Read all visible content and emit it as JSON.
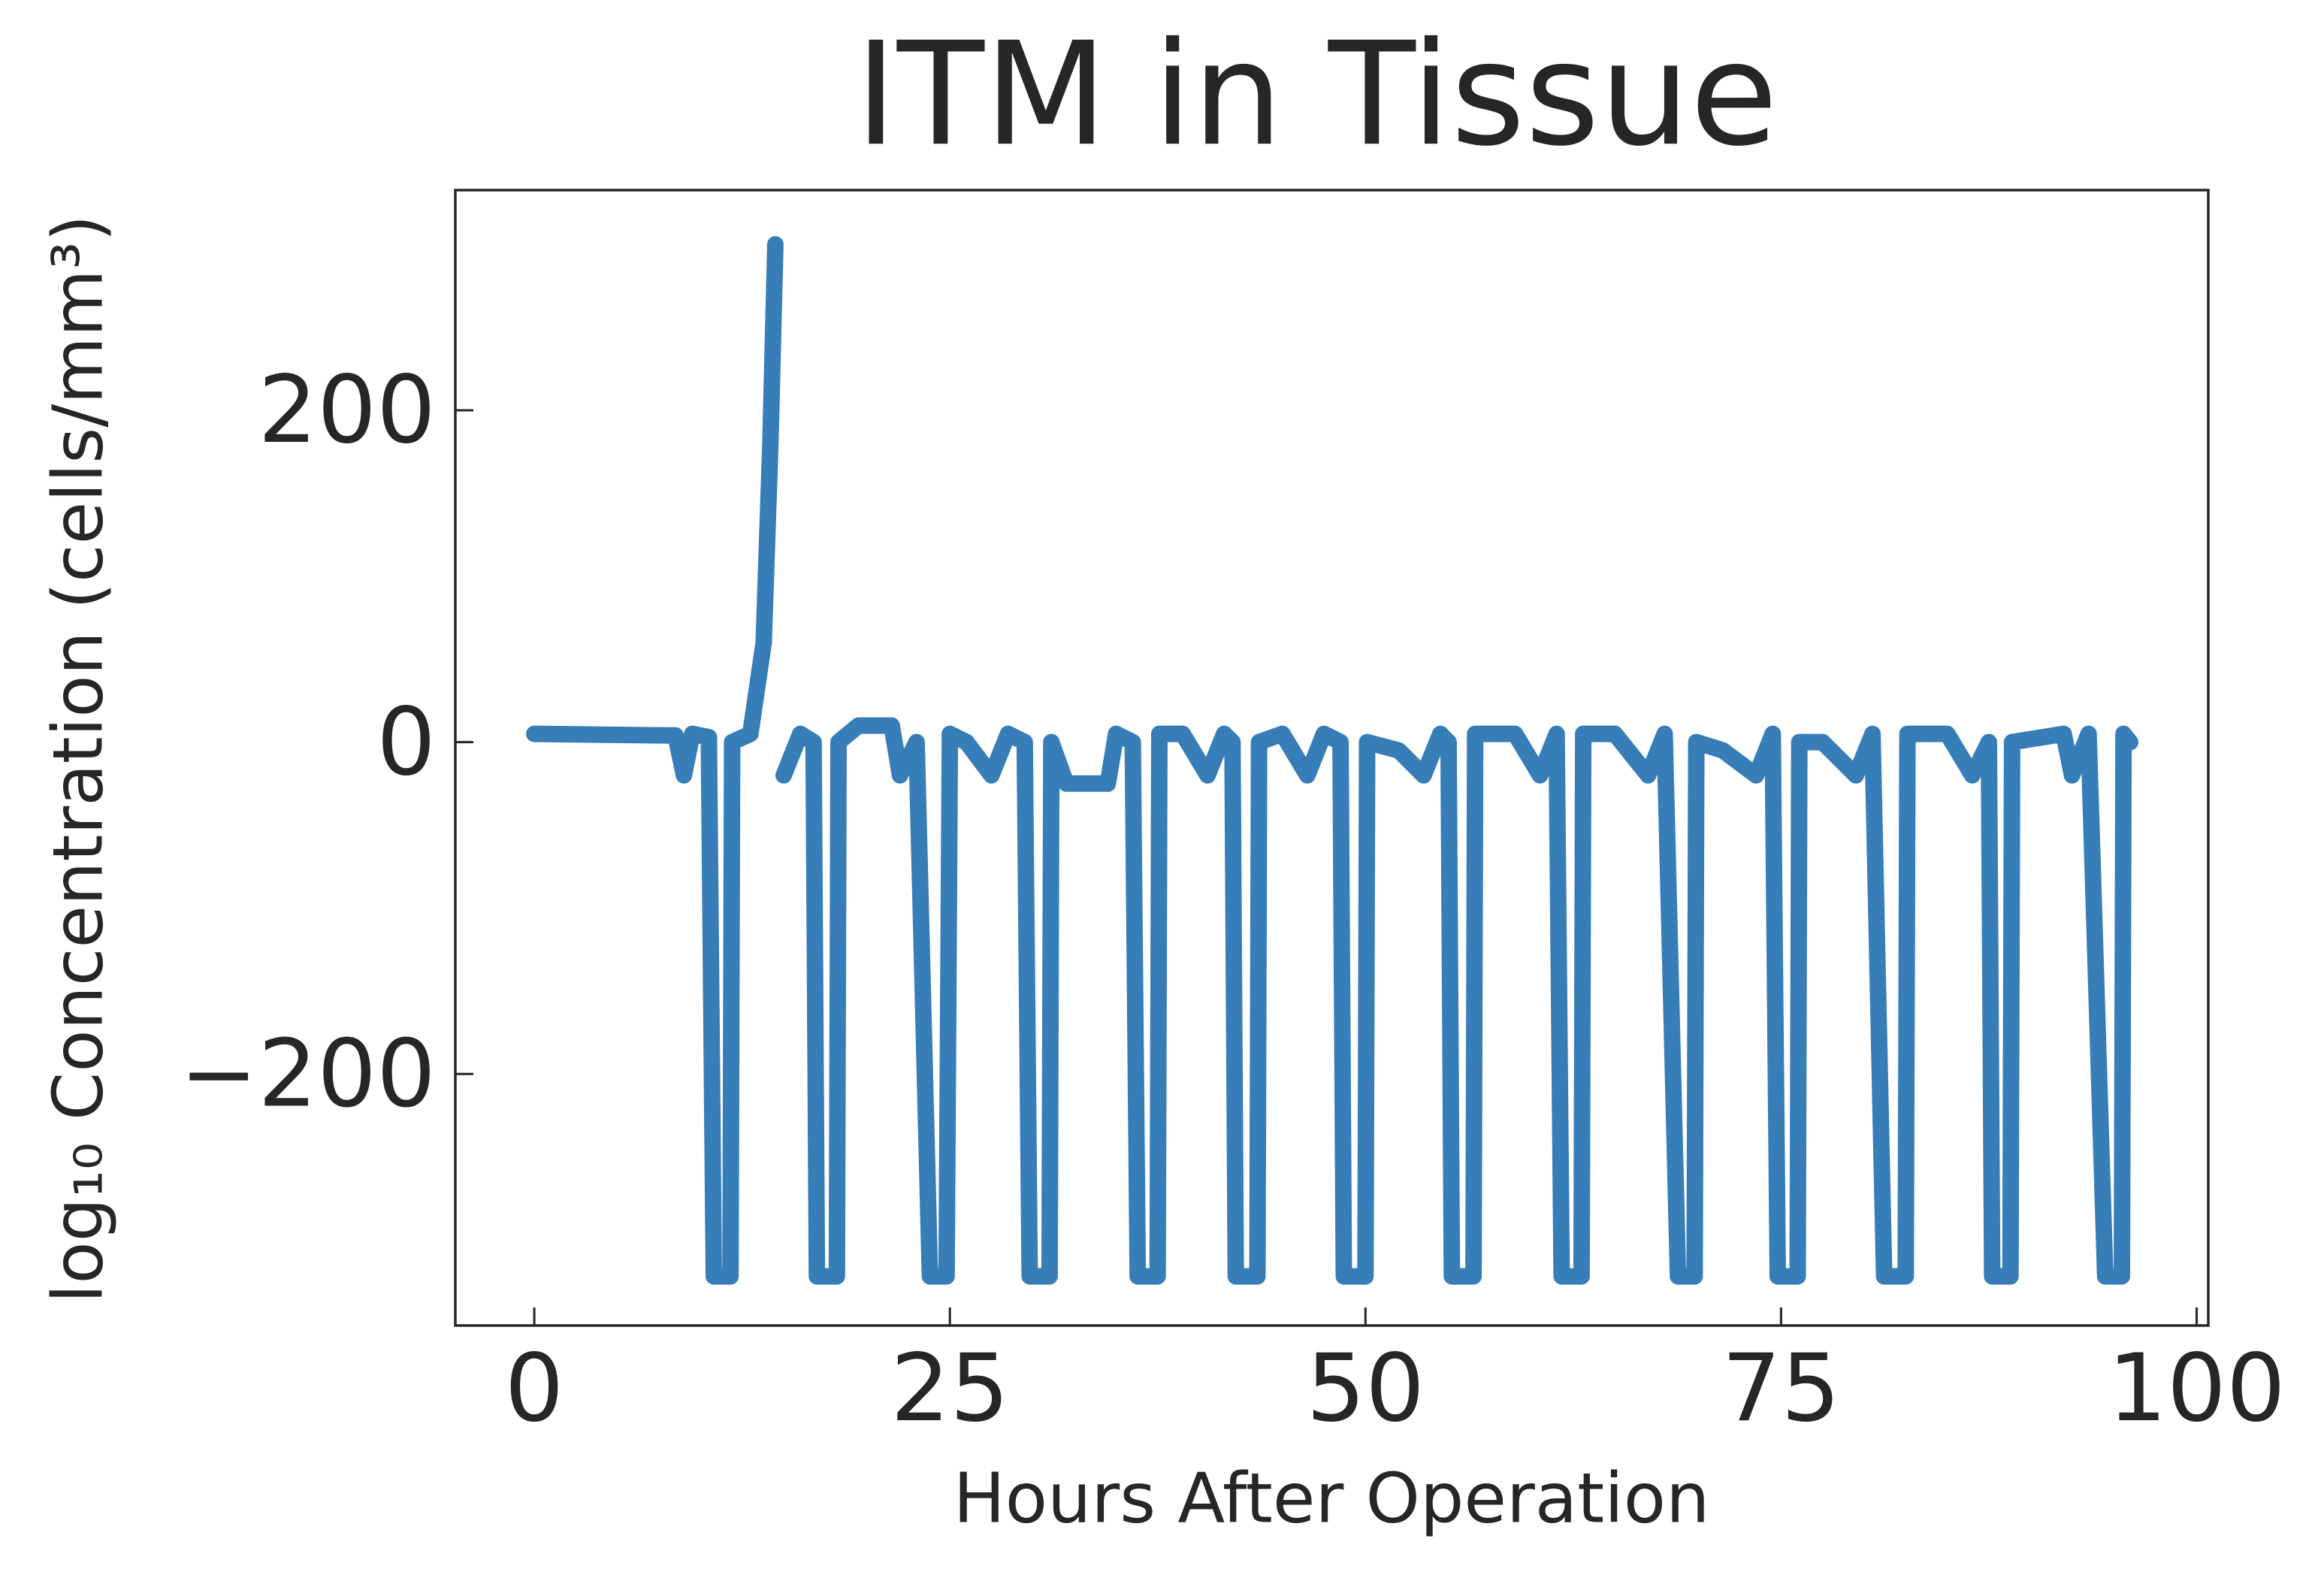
{
  "chart_data": {
    "type": "line",
    "title": "ITM in Tissue",
    "xlabel": "Hours After Operation",
    "ylabel": "log₁₀ Concentration (cells/mm³)",
    "xlim": [
      -4.75,
      100.7
    ],
    "ylim": [
      -351.6,
      332.7
    ],
    "xticks": [
      0,
      25,
      50,
      75,
      100
    ],
    "yticks": [
      {
        "value": -200,
        "label": "−200"
      },
      0,
      200
    ],
    "grid": false,
    "series": [
      {
        "name": "ITM",
        "color": "#377eb8",
        "x": [
          0,
          8.5,
          9,
          9.5,
          10.5,
          10.8,
          11.8,
          11.9,
          13,
          13.8,
          14.2,
          14.5,
          15,
          15,
          16,
          16.8,
          17,
          18.2,
          18.3,
          19.5,
          21.5,
          22,
          23,
          23.8,
          24.8,
          25,
          26,
          27.5,
          28.5,
          29.5,
          29.8,
          31,
          31.1,
          32,
          34.5,
          35,
          36,
          36.3,
          37.5,
          37.6,
          39,
          40.5,
          41.5,
          42,
          42.2,
          43.5,
          43.6,
          45,
          46.5,
          47.5,
          48.5,
          48.7,
          50,
          50.1,
          52,
          53.5,
          54.5,
          55,
          55.2,
          56.5,
          56.6,
          59,
          60.5,
          61.5,
          61.8,
          63,
          63.1,
          65,
          67,
          68,
          68.8,
          69.8,
          69.9,
          71.5,
          73.5,
          74.5,
          74.8,
          76,
          76.1,
          77.5,
          79.5,
          80.5,
          81.2,
          82.5,
          82.6,
          85,
          86.5,
          87.5,
          87.7,
          88.8,
          88.9,
          92,
          92.5,
          93.5,
          94.5,
          95.5,
          95.6,
          96
        ],
        "values": [
          5,
          4,
          -20,
          5,
          3,
          -322,
          -322,
          0,
          5,
          60,
          180,
          300,
          null,
          -20,
          5,
          0,
          -322,
          -322,
          0,
          10,
          10,
          -20,
          0,
          -322,
          -322,
          5,
          0,
          -20,
          5,
          0,
          -322,
          -322,
          0,
          -25,
          -25,
          5,
          0,
          -322,
          -322,
          5,
          5,
          -20,
          5,
          0,
          -322,
          -322,
          0,
          5,
          -20,
          5,
          0,
          -322,
          -322,
          0,
          -5,
          -20,
          5,
          0,
          -322,
          -322,
          5,
          5,
          -20,
          5,
          -322,
          -322,
          5,
          5,
          -20,
          5,
          -322,
          -322,
          0,
          -5,
          -20,
          5,
          -322,
          -322,
          0,
          0,
          -20,
          5,
          -322,
          -322,
          5,
          5,
          -20,
          0,
          -322,
          -322,
          0,
          5,
          -20,
          5,
          -322,
          -322,
          5,
          0
        ]
      }
    ]
  }
}
